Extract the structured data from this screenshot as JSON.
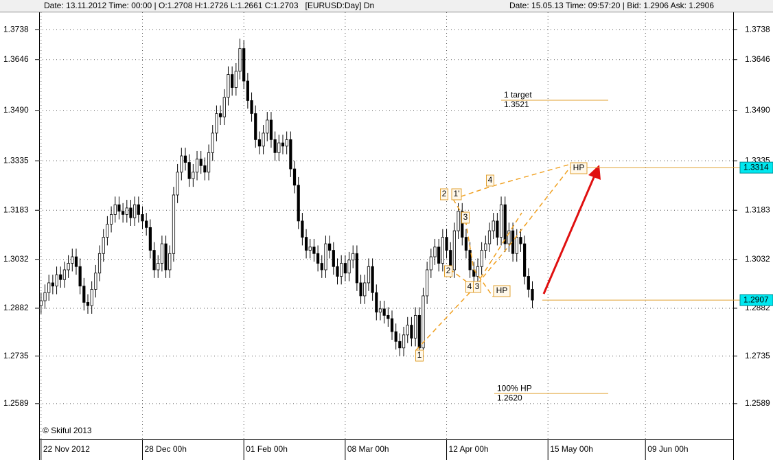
{
  "header": {
    "left": "Date: 13.11.2012 Time: 00:00 | O:1.2708 H:1.2726 L:1.2661 C:1.2703   [EURUSD:Day] Dn",
    "right": "Date: 15.05.13 Time: 09:57:20 | Bid: 1.2906 Ask: 1.2906"
  },
  "chart_data": {
    "type": "candlestick",
    "copyright": "© Skiful 2013",
    "open": [
      1.289,
      1.2905,
      1.293,
      1.296,
      1.295,
      1.2985,
      1.297,
      1.3,
      1.302,
      1.304,
      1.301,
      1.295,
      1.29,
      1.289,
      1.294,
      1.299,
      1.305,
      1.31,
      1.314,
      1.317,
      1.32,
      1.318,
      1.317,
      1.319,
      1.316,
      1.32,
      1.317,
      1.315,
      1.313,
      1.306,
      1.3,
      1.302,
      1.308,
      1.3,
      1.305,
      1.323,
      1.33,
      1.335,
      1.333,
      1.328,
      1.33,
      1.334,
      1.332,
      1.33,
      1.336,
      1.342,
      1.348,
      1.347,
      1.353,
      1.36,
      1.356,
      1.361,
      1.368,
      1.358,
      1.352,
      1.348,
      1.34,
      1.338,
      1.342,
      1.346,
      1.34,
      1.336,
      1.339,
      1.338,
      1.34,
      1.331,
      1.326,
      1.315,
      1.31,
      1.306,
      1.307,
      1.305,
      1.302,
      1.3,
      1.308,
      1.306,
      1.301,
      1.298,
      1.302,
      1.299,
      1.303,
      1.305,
      1.296,
      1.292,
      1.296,
      1.301,
      1.293,
      1.287,
      1.288,
      1.286,
      1.285,
      1.281,
      1.278,
      1.276,
      1.28,
      1.283,
      1.279,
      1.286,
      1.276,
      1.292,
      1.3,
      1.304,
      1.307,
      1.302,
      1.31,
      1.306,
      1.3,
      1.312,
      1.318,
      1.31,
      1.306,
      1.3,
      1.298,
      1.301,
      1.306,
      1.308,
      1.312,
      1.315,
      1.31,
      1.32,
      1.308,
      1.312,
      1.305,
      1.31,
      1.308,
      1.298,
      1.294
    ],
    "high": [
      1.293,
      1.2955,
      1.2985,
      1.2985,
      1.301,
      1.301,
      1.3025,
      1.3045,
      1.3065,
      1.3065,
      1.3035,
      1.2975,
      1.2925,
      1.2965,
      1.3015,
      1.3075,
      1.3125,
      1.3165,
      1.3195,
      1.3225,
      1.3225,
      1.3205,
      1.3215,
      1.3215,
      1.3225,
      1.3225,
      1.3195,
      1.3175,
      1.3155,
      1.3085,
      1.3045,
      1.3105,
      1.3105,
      1.3075,
      1.3255,
      1.3325,
      1.3375,
      1.3375,
      1.3355,
      1.3325,
      1.3365,
      1.3365,
      1.3345,
      1.3385,
      1.3445,
      1.3505,
      1.3505,
      1.3555,
      1.3625,
      1.3625,
      1.3635,
      1.371,
      1.3705,
      1.3605,
      1.3545,
      1.3505,
      1.3425,
      1.3445,
      1.3485,
      1.3485,
      1.3425,
      1.3415,
      1.3415,
      1.3425,
      1.3425,
      1.3335,
      1.3285,
      1.3175,
      1.3125,
      1.3095,
      1.3095,
      1.3075,
      1.3045,
      1.3105,
      1.3105,
      1.3085,
      1.3035,
      1.3045,
      1.3045,
      1.3055,
      1.3075,
      1.3075,
      1.2985,
      1.2985,
      1.3035,
      1.3035,
      1.2955,
      1.2905,
      1.2905,
      1.2885,
      1.2875,
      1.2835,
      1.2805,
      1.2825,
      1.2855,
      1.2855,
      1.2885,
      1.2885,
      1.2945,
      1.3025,
      1.3065,
      1.3095,
      1.3095,
      1.3125,
      1.3125,
      1.3085,
      1.3145,
      1.3205,
      1.3205,
      1.3125,
      1.3085,
      1.3025,
      1.3035,
      1.3085,
      1.3105,
      1.3145,
      1.3175,
      1.3175,
      1.3225,
      1.3225,
      1.3145,
      1.3145,
      1.3125,
      1.3125,
      1.3105,
      1.3005,
      1.2965
    ],
    "low": [
      1.2865,
      1.288,
      1.2905,
      1.2925,
      1.2925,
      1.2945,
      1.2945,
      1.2975,
      1.2995,
      1.2985,
      1.2925,
      1.2875,
      1.2865,
      1.2865,
      1.2915,
      1.2965,
      1.3025,
      1.3075,
      1.3115,
      1.3145,
      1.3155,
      1.3145,
      1.3145,
      1.3135,
      1.3135,
      1.3145,
      1.3125,
      1.3105,
      1.3035,
      1.2975,
      1.2975,
      1.2995,
      1.2975,
      1.2975,
      1.3025,
      1.3205,
      1.3275,
      1.3305,
      1.3255,
      1.3255,
      1.3275,
      1.3295,
      1.3275,
      1.3275,
      1.3335,
      1.3395,
      1.3445,
      1.3445,
      1.3505,
      1.3535,
      1.3535,
      1.3585,
      1.3555,
      1.3495,
      1.3455,
      1.3375,
      1.3355,
      1.3355,
      1.3395,
      1.3375,
      1.3335,
      1.3335,
      1.3355,
      1.3355,
      1.3285,
      1.3235,
      1.3125,
      1.3075,
      1.3035,
      1.3035,
      1.3025,
      1.2995,
      1.2975,
      1.2975,
      1.3035,
      1.2985,
      1.2955,
      1.2955,
      1.2965,
      1.2965,
      1.3005,
      1.2935,
      1.2895,
      1.2895,
      1.2935,
      1.2905,
      1.2845,
      1.2845,
      1.2835,
      1.2825,
      1.2785,
      1.2755,
      1.2735,
      1.2735,
      1.2775,
      1.2765,
      1.2765,
      1.2745,
      1.2735,
      1.2895,
      1.2975,
      1.3015,
      1.2995,
      1.2995,
      1.3035,
      1.2975,
      1.2975,
      1.3095,
      1.3075,
      1.3035,
      1.2975,
      1.2955,
      1.2955,
      1.2985,
      1.3035,
      1.3055,
      1.3095,
      1.3075,
      1.3075,
      1.3055,
      1.3055,
      1.3025,
      1.3025,
      1.3055,
      1.2955,
      1.2915,
      1.2882
    ],
    "close": [
      1.2905,
      1.293,
      1.296,
      1.295,
      1.2985,
      1.297,
      1.3,
      1.302,
      1.304,
      1.301,
      1.295,
      1.29,
      1.289,
      1.294,
      1.299,
      1.305,
      1.31,
      1.314,
      1.317,
      1.32,
      1.318,
      1.317,
      1.319,
      1.316,
      1.32,
      1.317,
      1.315,
      1.313,
      1.306,
      1.3,
      1.302,
      1.308,
      1.3,
      1.305,
      1.323,
      1.33,
      1.335,
      1.333,
      1.328,
      1.33,
      1.334,
      1.332,
      1.33,
      1.336,
      1.342,
      1.348,
      1.347,
      1.353,
      1.36,
      1.356,
      1.361,
      1.368,
      1.358,
      1.352,
      1.348,
      1.34,
      1.338,
      1.342,
      1.346,
      1.34,
      1.336,
      1.339,
      1.338,
      1.34,
      1.331,
      1.326,
      1.315,
      1.31,
      1.306,
      1.307,
      1.305,
      1.302,
      1.3,
      1.308,
      1.306,
      1.301,
      1.298,
      1.302,
      1.299,
      1.303,
      1.305,
      1.296,
      1.292,
      1.296,
      1.301,
      1.293,
      1.287,
      1.288,
      1.286,
      1.285,
      1.281,
      1.278,
      1.276,
      1.28,
      1.283,
      1.279,
      1.286,
      1.276,
      1.292,
      1.3,
      1.304,
      1.307,
      1.302,
      1.31,
      1.306,
      1.3,
      1.312,
      1.318,
      1.31,
      1.306,
      1.3,
      1.298,
      1.301,
      1.306,
      1.308,
      1.312,
      1.315,
      1.31,
      1.32,
      1.308,
      1.312,
      1.305,
      1.31,
      1.308,
      1.298,
      1.294,
      1.2907
    ],
    "up_color": "#ffffff",
    "down_color": "#000000",
    "xlim": [
      -0.5,
      177.5
    ],
    "xticks": [
      {
        "value": 0,
        "label": "22 Nov 2012"
      },
      {
        "value": 26,
        "label": "28 Dec 00h"
      },
      {
        "value": 52,
        "label": "01 Feb 00h"
      },
      {
        "value": 78,
        "label": "08 Mar 00h"
      },
      {
        "value": 104,
        "label": "12 Apr 00h"
      },
      {
        "value": 130,
        "label": "15 May 00h"
      },
      {
        "value": 155,
        "label": "09 Jun 00h"
      }
    ],
    "ylim": [
      1.2479,
      1.3791
    ],
    "yticks": [
      1.3738,
      1.3646,
      {
        "value": 1.349,
        "label": "1.3490"
      },
      1.3335,
      1.3183,
      1.3032,
      1.2882,
      1.2735,
      1.2589
    ],
    "grid": true,
    "levels": [
      {
        "name": "1 target",
        "value": 1.3521
      },
      {
        "name": "100% HP",
        "value": 1.262,
        "value_label": "1.2620"
      }
    ],
    "price_markers": [
      {
        "value": 1.3314,
        "color": "#00e8f0"
      },
      {
        "value": 1.2907,
        "color": "#00e8f0"
      }
    ],
    "pattern_labels": [
      "1",
      "2",
      "1'",
      "3",
      "2",
      "4",
      "3",
      "4",
      "HP",
      "HP"
    ]
  }
}
